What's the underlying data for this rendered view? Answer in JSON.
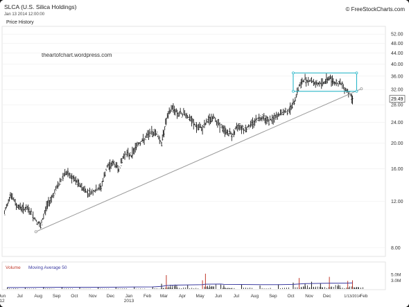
{
  "header": {
    "title": "SLCA (U.S. Silica Holdings)",
    "date": "Jan 13 2014 12:00:00",
    "source": "© FreeStockCharts.com",
    "panel_label": "Price History",
    "watermark": "theartofchart.wordpress.com"
  },
  "chart_data": [
    {
      "type": "line",
      "title": "SLCA (U.S. Silica Holdings)",
      "subtitle": "Price History",
      "scale": "log",
      "ylim": [
        7.5,
        55
      ],
      "yticks": [
        8.0,
        12.0,
        16.0,
        20.0,
        24.0,
        28.0,
        32.0,
        36.0,
        40.0,
        44.0,
        48.0,
        52.0
      ],
      "ytick_labels": [
        "8.00",
        "12.00",
        "16.00",
        "20.00",
        "24.00",
        "28.00",
        "32.00",
        "36.00",
        "40.00",
        "44.00",
        "48.00",
        "52.00"
      ],
      "x_range": [
        "2012-06-01",
        "2014-02-20"
      ],
      "last_price": "29.49",
      "series": [
        {
          "kind": "price_bars",
          "x": [
            "2012-06-05",
            "2012-06-15",
            "2012-06-25",
            "2012-07-05",
            "2012-07-15",
            "2012-07-25",
            "2012-08-05",
            "2012-08-15",
            "2012-08-25",
            "2012-09-05",
            "2012-09-15",
            "2012-09-25",
            "2012-10-05",
            "2012-10-15",
            "2012-10-25",
            "2012-11-05",
            "2012-11-15",
            "2012-11-25",
            "2012-12-05",
            "2012-12-15",
            "2012-12-25",
            "2013-01-05",
            "2013-01-15",
            "2013-01-25",
            "2013-02-05",
            "2013-02-15",
            "2013-02-25",
            "2013-03-05",
            "2013-03-15",
            "2013-03-25",
            "2013-04-05",
            "2013-04-15",
            "2013-04-25",
            "2013-05-05",
            "2013-05-15",
            "2013-05-25",
            "2013-06-05",
            "2013-06-15",
            "2013-06-25",
            "2013-07-05",
            "2013-07-15",
            "2013-07-25",
            "2013-08-05",
            "2013-08-15",
            "2013-08-25",
            "2013-09-05",
            "2013-09-15",
            "2013-09-25",
            "2013-10-05",
            "2013-10-15",
            "2013-10-25",
            "2013-11-05",
            "2013-11-15",
            "2013-11-25",
            "2013-12-05",
            "2013-12-15",
            "2013-12-25",
            "2014-01-05",
            "2014-01-13"
          ],
          "y": [
            10.8,
            12.8,
            11.6,
            11.3,
            11.2,
            10.4,
            9.6,
            11.5,
            12.6,
            14.0,
            15.5,
            14.9,
            14.2,
            13.5,
            12.9,
            13.2,
            13.6,
            16.2,
            16.8,
            16.0,
            18.3,
            18.0,
            19.8,
            20.5,
            21.8,
            22.0,
            20.0,
            24.5,
            27.5,
            25.8,
            26.0,
            24.5,
            23.0,
            22.8,
            24.5,
            25.0,
            23.0,
            22.0,
            21.5,
            23.5,
            22.5,
            23.5,
            24.8,
            25.2,
            24.3,
            25.0,
            26.0,
            26.5,
            28.0,
            33.0,
            35.0,
            34.5,
            33.5,
            34.0,
            35.5,
            34.0,
            33.5,
            31.5,
            29.49
          ]
        }
      ],
      "annotations": [
        {
          "kind": "trendline",
          "from": {
            "x": "2012-07-28",
            "y": 9.2
          },
          "to": {
            "x": "2014-01-28",
            "y": 32.2
          }
        },
        {
          "kind": "rectangle",
          "x": [
            "2013-10-05",
            "2014-01-20"
          ],
          "y": [
            31.5,
            37.0
          ]
        }
      ]
    },
    {
      "type": "bar",
      "title": "Volume",
      "legend": [
        "Volume",
        "Moving Average 50"
      ],
      "ytick_labels": [
        "5.0M",
        "3.0M"
      ],
      "ylim": [
        0,
        6000000
      ],
      "x": [
        "2012-06-10",
        "2012-07-10",
        "2012-08-10",
        "2012-09-10",
        "2012-10-10",
        "2012-11-10",
        "2012-12-10",
        "2013-01-10",
        "2013-02-10",
        "2013-02-25",
        "2013-03-05",
        "2013-03-20",
        "2013-04-10",
        "2013-05-05",
        "2013-05-10",
        "2013-06-05",
        "2013-06-10",
        "2013-07-10",
        "2013-08-10",
        "2013-09-10",
        "2013-10-05",
        "2013-10-15",
        "2013-10-25",
        "2013-11-05",
        "2013-11-20",
        "2013-12-05",
        "2013-12-20",
        "2014-01-05",
        "2014-01-13"
      ],
      "values": [
        600000,
        500000,
        700000,
        600000,
        500000,
        600000,
        700000,
        600000,
        800000,
        1800000,
        4800000,
        1500000,
        1300000,
        3000000,
        5300000,
        1500000,
        1300000,
        1500000,
        1200000,
        1600000,
        2200000,
        3800000,
        1800000,
        2500000,
        2000000,
        4200000,
        1500000,
        2800000,
        3000000
      ],
      "ma50": [
        500000,
        520000,
        560000,
        590000,
        600000,
        610000,
        640000,
        680000,
        720000,
        900000,
        1200000,
        1350000,
        1400000,
        1500000,
        1650000,
        1700000,
        1600000,
        1550000,
        1500000,
        1500000,
        1600000,
        1750000,
        1850000,
        1900000,
        1950000,
        2000000,
        2000000,
        2050000,
        2100000
      ],
      "axis_labels": [
        {
          "label": "Jun\n12",
          "date": "2012-06-01"
        },
        {
          "label": "Jul",
          "date": "2012-07-01"
        },
        {
          "label": "Aug",
          "date": "2012-08-01"
        },
        {
          "label": "Sep",
          "date": "2012-09-01"
        },
        {
          "label": "Oct",
          "date": "2012-10-01"
        },
        {
          "label": "Nov",
          "date": "2012-11-01"
        },
        {
          "label": "Dec",
          "date": "2012-12-01"
        },
        {
          "label": "Jan\n2013",
          "date": "2013-01-01"
        },
        {
          "label": "Feb",
          "date": "2013-02-01"
        },
        {
          "label": "Mar",
          "date": "2013-03-01"
        },
        {
          "label": "Apr",
          "date": "2013-04-01"
        },
        {
          "label": "May",
          "date": "2013-05-01"
        },
        {
          "label": "Jun",
          "date": "2013-06-01"
        },
        {
          "label": "Jul",
          "date": "2013-07-01"
        },
        {
          "label": "Aug",
          "date": "2013-08-01"
        },
        {
          "label": "Sep",
          "date": "2013-09-01"
        },
        {
          "label": "Oct",
          "date": "2013-10-01"
        },
        {
          "label": "Nov",
          "date": "2013-11-01"
        },
        {
          "label": "Dec",
          "date": "2013-12-01"
        },
        {
          "label": "1/13/2014",
          "date": "2014-01-13"
        },
        {
          "label": "Feb",
          "date": "2014-02-01"
        }
      ]
    }
  ],
  "colors": {
    "price": "#1a1a1a",
    "trendline": "#999999",
    "box": "#29b6c8",
    "volume": "#1a1a1a",
    "volume_spike": "#c0392b",
    "ma": "#3a3aa0",
    "volume_label": "#c0392b",
    "ma_label": "#3a3aa0",
    "grid": "#eeeeee",
    "axis_text": "#333333"
  }
}
